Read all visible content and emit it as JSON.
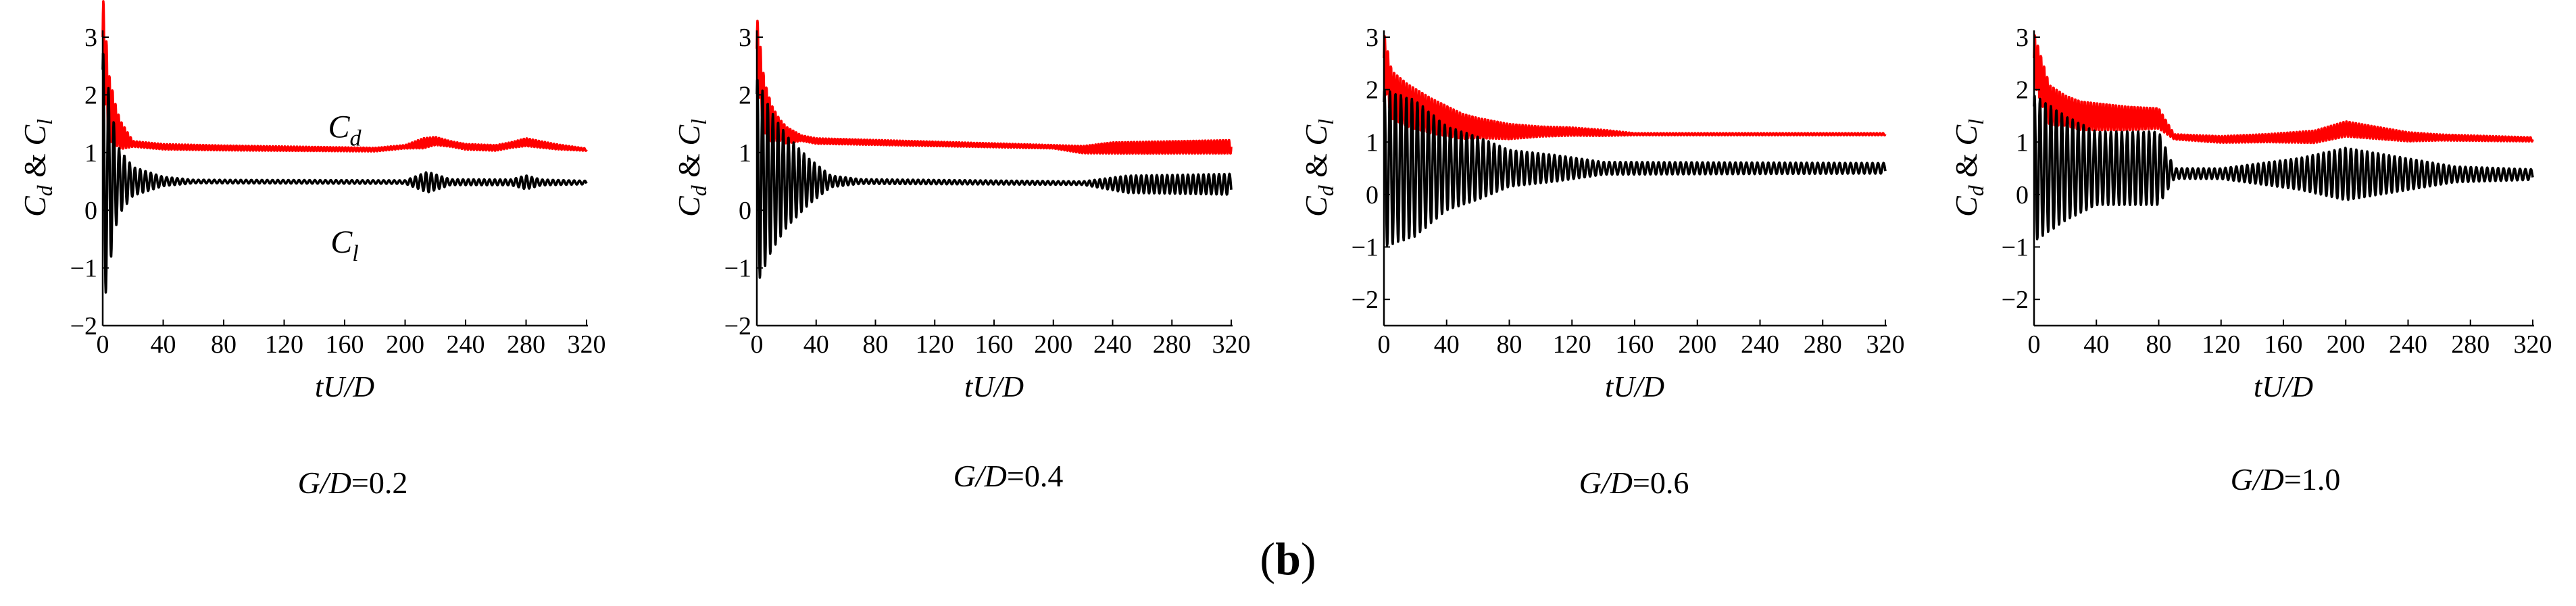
{
  "figure_label": {
    "open": "(",
    "letter": "b",
    "close": ")"
  },
  "chart_data": [
    {
      "type": "line",
      "caption": {
        "lhs": "G/D",
        "rhs": "=0.2"
      },
      "xlabel": "tU/D",
      "ylabel": {
        "cd_base": "C",
        "cd_sub": "d",
        "amp": " & ",
        "cl_base": "C",
        "cl_sub": "l"
      },
      "xlim": [
        0,
        320
      ],
      "ylim": [
        -2,
        3
      ],
      "xticks": [
        0,
        40,
        80,
        120,
        160,
        200,
        240,
        280,
        320
      ],
      "yticks": [
        -2,
        -1,
        0,
        1,
        2,
        3
      ],
      "annotations": [
        {
          "base": "C",
          "sub": "d",
          "x": 160,
          "y": 1.45
        },
        {
          "base": "C",
          "sub": "l",
          "x": 160,
          "y": -0.55
        }
      ],
      "series": [
        {
          "name": "Cd",
          "color": "#ff0000",
          "profile": [
            [
              0,
              3
            ],
            [
              4,
              1.8
            ],
            [
              8,
              1.5
            ],
            [
              12,
              1.3
            ],
            [
              20,
              1.15
            ],
            [
              40,
              1.1
            ],
            [
              80,
              1.08
            ],
            [
              180,
              1.05
            ],
            [
              200,
              1.1
            ],
            [
              220,
              1.2
            ],
            [
              240,
              1.1
            ],
            [
              260,
              1.08
            ],
            [
              280,
              1.18
            ],
            [
              300,
              1.1
            ],
            [
              320,
              1.05
            ]
          ],
          "amplitude": [
            [
              0,
              0.8
            ],
            [
              10,
              0.3
            ],
            [
              20,
              0.05
            ],
            [
              200,
              0.03
            ],
            [
              212,
              0.09
            ],
            [
              230,
              0.05
            ],
            [
              270,
              0.05
            ],
            [
              280,
              0.07
            ],
            [
              320,
              0.02
            ]
          ],
          "period": 2
        },
        {
          "name": "Cl",
          "color": "#000000",
          "profile": [
            [
              0,
              0.5
            ],
            [
              30,
              0.5
            ],
            [
              320,
              0.48
            ]
          ],
          "amplitude": [
            [
              0,
              2.3
            ],
            [
              5,
              1.4
            ],
            [
              10,
              0.6
            ],
            [
              20,
              0.25
            ],
            [
              40,
              0.08
            ],
            [
              60,
              0.03
            ],
            [
              200,
              0.03
            ],
            [
              215,
              0.18
            ],
            [
              230,
              0.05
            ],
            [
              270,
              0.05
            ],
            [
              280,
              0.12
            ],
            [
              290,
              0.05
            ],
            [
              320,
              0.03
            ]
          ],
          "period": 3.5
        }
      ]
    },
    {
      "type": "line",
      "caption": {
        "lhs": "G/D",
        "rhs": "=0.4"
      },
      "xlabel": "tU/D",
      "ylabel": {
        "cd_base": "C",
        "cd_sub": "d",
        "amp": " & ",
        "cl_base": "C",
        "cl_sub": "l"
      },
      "xlim": [
        0,
        320
      ],
      "ylim": [
        -2,
        3
      ],
      "xticks": [
        0,
        40,
        80,
        120,
        160,
        200,
        240,
        280,
        320
      ],
      "yticks": [
        -2,
        -1,
        0,
        1,
        2,
        3
      ],
      "annotations": [],
      "series": [
        {
          "name": "Cd",
          "color": "#ff0000",
          "profile": [
            [
              0,
              2.8
            ],
            [
              5,
              1.8
            ],
            [
              10,
              1.5
            ],
            [
              20,
              1.3
            ],
            [
              40,
              1.2
            ],
            [
              120,
              1.15
            ],
            [
              200,
              1.1
            ],
            [
              220,
              1.05
            ],
            [
              240,
              1.08
            ],
            [
              320,
              1.1
            ]
          ],
          "amplitude": [
            [
              0,
              0.6
            ],
            [
              15,
              0.2
            ],
            [
              30,
              0.05
            ],
            [
              200,
              0.03
            ],
            [
              240,
              0.1
            ],
            [
              320,
              0.12
            ]
          ],
          "period": 2
        },
        {
          "name": "Cl",
          "color": "#000000",
          "profile": [
            [
              0,
              0.5
            ],
            [
              60,
              0.5
            ],
            [
              220,
              0.47
            ],
            [
              250,
              0.45
            ],
            [
              320,
              0.45
            ]
          ],
          "amplitude": [
            [
              0,
              1.8
            ],
            [
              10,
              1.2
            ],
            [
              20,
              0.8
            ],
            [
              35,
              0.4
            ],
            [
              50,
              0.1
            ],
            [
              70,
              0.04
            ],
            [
              220,
              0.03
            ],
            [
              250,
              0.15
            ],
            [
              320,
              0.18
            ]
          ],
          "period": 3.5
        }
      ]
    },
    {
      "type": "line",
      "caption": {
        "lhs": "G/D",
        "rhs": "=0.6"
      },
      "xlabel": "tU/D",
      "ylabel": {
        "cd_base": "C",
        "cd_sub": "d",
        "amp": " & ",
        "cl_base": "C",
        "cl_sub": "l"
      },
      "xlim": [
        0,
        320
      ],
      "ylim": [
        -2.5,
        3
      ],
      "xticks": [
        0,
        40,
        80,
        120,
        160,
        200,
        240,
        280,
        320
      ],
      "yticks": [
        -2,
        -1,
        0,
        1,
        2,
        3
      ],
      "annotations": [],
      "series": [
        {
          "name": "Cd",
          "color": "#ff0000",
          "profile": [
            [
              0,
              2.6
            ],
            [
              5,
              1.9
            ],
            [
              15,
              1.7
            ],
            [
              30,
              1.5
            ],
            [
              50,
              1.3
            ],
            [
              80,
              1.2
            ],
            [
              120,
              1.2
            ],
            [
              160,
              1.15
            ],
            [
              320,
              1.15
            ]
          ],
          "amplitude": [
            [
              0,
              0.5
            ],
            [
              30,
              0.35
            ],
            [
              60,
              0.2
            ],
            [
              100,
              0.1
            ],
            [
              140,
              0.06
            ],
            [
              160,
              0.02
            ],
            [
              320,
              0.02
            ]
          ],
          "period": 2
        },
        {
          "name": "Cl",
          "color": "#000000",
          "profile": [
            [
              0,
              0.5
            ],
            [
              320,
              0.5
            ]
          ],
          "amplitude": [
            [
              0,
              1.5
            ],
            [
              20,
              1.3
            ],
            [
              40,
              0.8
            ],
            [
              60,
              0.6
            ],
            [
              80,
              0.35
            ],
            [
              110,
              0.25
            ],
            [
              140,
              0.12
            ],
            [
              320,
              0.1
            ]
          ],
          "period": 3.5
        }
      ]
    },
    {
      "type": "line",
      "caption": {
        "lhs": "G/D",
        "rhs": "=1.0"
      },
      "xlabel": "tU/D",
      "ylabel": {
        "cd_base": "C",
        "cd_sub": "d",
        "amp": " & ",
        "cl_base": "C",
        "cl_sub": "l"
      },
      "xlim": [
        0,
        320
      ],
      "ylim": [
        -2.5,
        3
      ],
      "xticks": [
        0,
        40,
        80,
        120,
        160,
        200,
        240,
        280,
        320
      ],
      "yticks": [
        -2,
        -1,
        0,
        1,
        2,
        3
      ],
      "annotations": [],
      "series": [
        {
          "name": "Cd",
          "color": "#ff0000",
          "profile": [
            [
              0,
              2.6
            ],
            [
              10,
              1.7
            ],
            [
              30,
              1.5
            ],
            [
              60,
              1.45
            ],
            [
              80,
              1.45
            ],
            [
              90,
              1.1
            ],
            [
              120,
              1.05
            ],
            [
              180,
              1.1
            ],
            [
              200,
              1.25
            ],
            [
              240,
              1.1
            ],
            [
              320,
              1.05
            ]
          ],
          "amplitude": [
            [
              0,
              0.5
            ],
            [
              20,
              0.3
            ],
            [
              80,
              0.2
            ],
            [
              90,
              0.05
            ],
            [
              150,
              0.08
            ],
            [
              200,
              0.15
            ],
            [
              260,
              0.06
            ],
            [
              320,
              0.04
            ]
          ],
          "period": 2
        },
        {
          "name": "Cl",
          "color": "#000000",
          "profile": [
            [
              0,
              0.5
            ],
            [
              80,
              0.5
            ],
            [
              90,
              0.4
            ],
            [
              320,
              0.38
            ]
          ],
          "amplitude": [
            [
              0,
              1.4
            ],
            [
              20,
              1.0
            ],
            [
              40,
              0.7
            ],
            [
              80,
              0.7
            ],
            [
              90,
              0.1
            ],
            [
              120,
              0.1
            ],
            [
              170,
              0.3
            ],
            [
              200,
              0.5
            ],
            [
              240,
              0.3
            ],
            [
              270,
              0.15
            ],
            [
              320,
              0.1
            ]
          ],
          "period": 3.5
        }
      ]
    }
  ]
}
